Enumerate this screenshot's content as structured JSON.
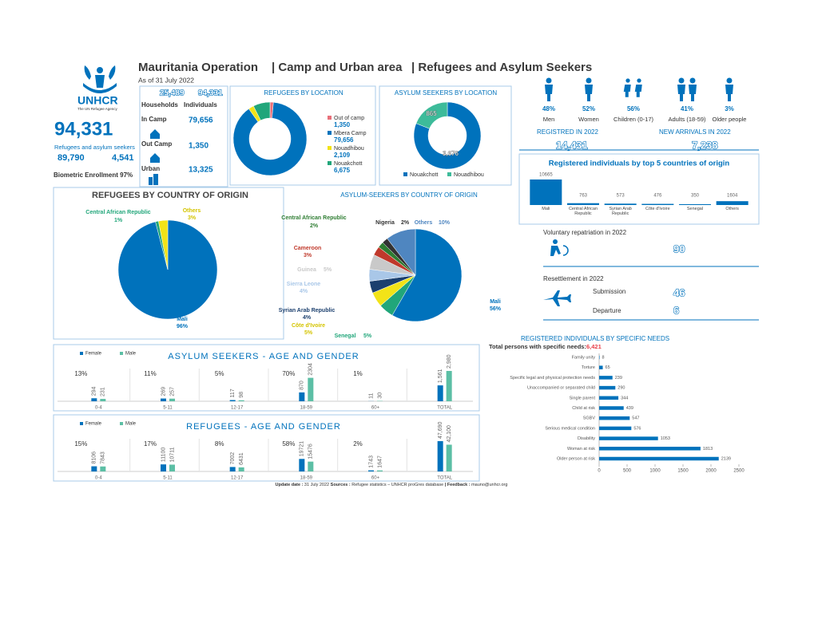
{
  "header": {
    "title": "Mauritania Operation",
    "area": "| Camp and Urban area",
    "population": "| Refugees and Asylum Seekers",
    "date": "As of 31 July 2022"
  },
  "logo": {
    "name": "UNHCR",
    "tagline": "The UN Refugee Agency"
  },
  "summary": {
    "total": "94,331",
    "total_label": "Refugees and asylum seekers",
    "refugees": "89,790",
    "asylum_seekers": "4,541",
    "biometric": "Biometric Enrollment 97%"
  },
  "households": {
    "households": "25,489",
    "individuals": "94,331",
    "households_label": "Households",
    "individuals_label": "Individuals",
    "rows": [
      {
        "label": "In Camp",
        "value": "79,656"
      },
      {
        "label": "Out Camp",
        "value": "1,350"
      },
      {
        "label": "Urban",
        "value": "13,325"
      }
    ]
  },
  "demographics": [
    {
      "value": "48%",
      "label": "Men"
    },
    {
      "value": "52%",
      "label": "Women"
    },
    {
      "value": "56%",
      "label": "Children (0-17)"
    },
    {
      "value": "41%",
      "label": "Adults (18-59)"
    },
    {
      "value": "3%",
      "label": "Older people"
    }
  ],
  "registered_2022": {
    "label": "REGISTRED IN 2022",
    "value": "14,431"
  },
  "new_arrivals_2022": {
    "label": "NEW ARRIVALS IN 2022",
    "value": "7,238"
  },
  "voluntary_repatriation": {
    "label": "Voluntary repatriation in 2022",
    "value": "90"
  },
  "resettlement": {
    "label": "Resettlement in 2022",
    "rows": [
      {
        "label": "Submission",
        "value": "46"
      },
      {
        "label": "Departure",
        "value": "6"
      }
    ]
  },
  "footer": {
    "update_label": "Update date :",
    "update": "31 July 2022",
    "sources_label": "Sources :",
    "sources": "Refugee statistics – UNHCR proGres database",
    "feedback_label": "| Feedback :",
    "feedback": "mauno@unhcr.org"
  },
  "chart_data": [
    {
      "type": "donut",
      "title": "REFUGEES BY LOCATION",
      "categories": [
        "Out of camp",
        "Mbera Camp",
        "Nouadhibou",
        "Nouakchott"
      ],
      "values": [
        1350,
        79656,
        2109,
        6675
      ],
      "value_labels": [
        "1,350",
        "79,656",
        "2,109",
        "6,675"
      ],
      "colors": [
        "#e8707a",
        "#0072bc",
        "#f2e318",
        "#21a67a"
      ]
    },
    {
      "type": "donut",
      "title": "ASYLUM SEEKERS BY LOCATION",
      "categories": [
        "Nouakchott",
        "Nouadhibou"
      ],
      "values": [
        3676,
        865
      ],
      "value_labels": [
        "3,676",
        "865"
      ],
      "colors": [
        "#0072bc",
        "#3dbb9a"
      ]
    },
    {
      "type": "bar",
      "title": "Registered individuals by top 5 countries of origin",
      "categories": [
        "Mali",
        "Central African Republic",
        "Syrian Arab Republic",
        "Côte d'Ivoire",
        "Senegal",
        "Others"
      ],
      "values": [
        10665,
        763,
        573,
        476,
        350,
        1604
      ],
      "color": "#0072bc"
    },
    {
      "type": "pie",
      "title": "REFUGEES BY COUNTRY OF ORIGIN",
      "categories": [
        "Mali",
        "Central African Republic",
        "Others"
      ],
      "values": [
        96,
        1,
        3
      ],
      "value_labels": [
        "96%",
        "1%",
        "3%"
      ],
      "colors": [
        "#0072bc",
        "#21a67a",
        "#f2e318"
      ]
    },
    {
      "type": "pie",
      "title": "ASYLUM-SEEKERS BY COUNTRY OF ORIGIN",
      "categories": [
        "Mali",
        "Senegal",
        "Côte d'Ivoire",
        "Syrian Arab Republic",
        "Sierra Leone",
        "Guinea",
        "Cameroon",
        "Central African Republic",
        "Nigeria",
        "Others"
      ],
      "values": [
        56,
        5,
        5,
        4,
        4,
        5,
        3,
        2,
        2,
        10
      ],
      "value_labels": [
        "56%",
        "5%",
        "5%",
        "4%",
        "4%",
        "5%",
        "3%",
        "2%",
        "2%",
        "10%"
      ],
      "colors": [
        "#0072bc",
        "#21a67a",
        "#f2e318",
        "#1b3f6e",
        "#a9c7e8",
        "#c9c9c9",
        "#c0392b",
        "#2e7d32",
        "#333333",
        "#4f86c0"
      ]
    },
    {
      "type": "grouped_bar",
      "title": "ASYLUM SEEKERS - AGE AND GENDER",
      "categories": [
        "0-4",
        "5-11",
        "12-17",
        "18-59",
        "60+",
        "TOTAL"
      ],
      "shares": [
        "13%",
        "11%",
        "5%",
        "70%",
        "1%"
      ],
      "series": [
        {
          "name": "Female",
          "color": "#0072bc",
          "values": [
            294,
            269,
            117,
            870,
            11,
            1561
          ],
          "value_labels": [
            "294",
            "269",
            "117",
            "870",
            "11",
            "1,561"
          ]
        },
        {
          "name": "Male",
          "color": "#5cbfa5",
          "values": [
            231,
            257,
            98,
            2304,
            30,
            2980
          ],
          "value_labels": [
            "231",
            "257",
            "98",
            "2304",
            "30",
            "2,980"
          ]
        }
      ]
    },
    {
      "type": "grouped_bar",
      "title": "REFUGEES - AGE AND GENDER",
      "categories": [
        "0-4",
        "5-11",
        "12-17",
        "18-59",
        "60+",
        "TOTAL"
      ],
      "shares": [
        "15%",
        "17%",
        "8%",
        "58%",
        "2%"
      ],
      "series": [
        {
          "name": "Female",
          "color": "#0072bc",
          "values": [
            8106,
            11100,
            7002,
            19721,
            1743,
            47690
          ],
          "value_labels": [
            "8106",
            "11100",
            "7002",
            "19721",
            "1743",
            "47,690"
          ]
        },
        {
          "name": "Male",
          "color": "#5cbfa5",
          "values": [
            7843,
            10711,
            6431,
            15476,
            1647,
            42100
          ],
          "value_labels": [
            "7843",
            "10711",
            "6431",
            "15476",
            "1647",
            "42,100"
          ]
        }
      ]
    },
    {
      "type": "hbar",
      "title": "REGISTERED INDIVIDUALS BY SPECIFIC NEEDS",
      "subtitle": "Total persons with specific needs:",
      "total": "6,421",
      "categories": [
        "Family unity",
        "Torture",
        "Specific legal and physical protection needs",
        "Unaccompanied or separated child",
        "Single parent",
        "Child at risk",
        "SGBV",
        "Serious medical condition",
        "Disability",
        "Woman at risk",
        "Older person at risk"
      ],
      "values": [
        8,
        65,
        239,
        290,
        344,
        439,
        547,
        576,
        1053,
        1813,
        2139
      ],
      "color": "#0072bc",
      "xlim": [
        0,
        2500
      ],
      "xticks": [
        0,
        500,
        1000,
        1500,
        2000,
        2500
      ]
    }
  ]
}
